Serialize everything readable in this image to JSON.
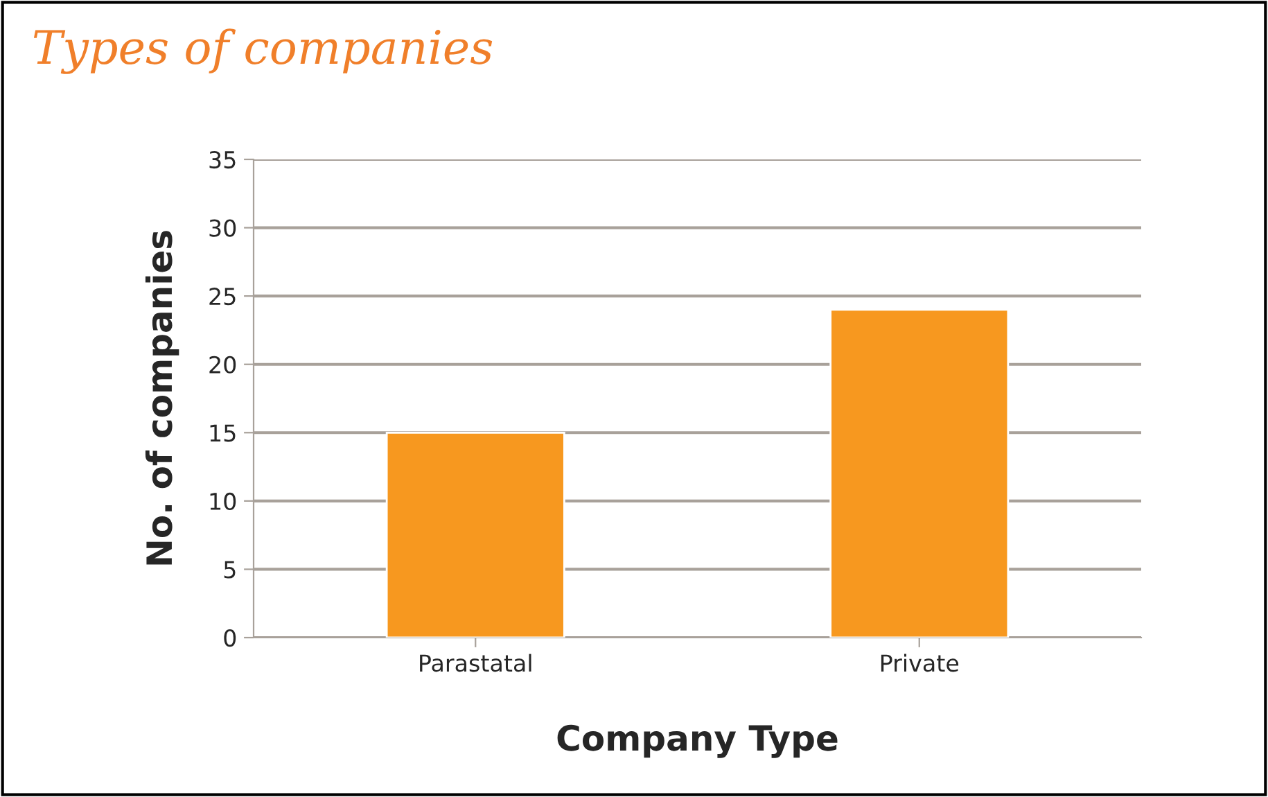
{
  "chart_data": {
    "type": "bar",
    "title": "Types of companies",
    "xlabel": "Company Type",
    "ylabel": "No. of companies",
    "categories": [
      "Parastatal",
      "Private"
    ],
    "values": [
      15,
      24
    ],
    "color": "#f7981f",
    "ylim": [
      0,
      35
    ],
    "yticks": [
      0,
      5,
      10,
      15,
      20,
      25,
      30,
      35
    ],
    "grid": "y"
  }
}
